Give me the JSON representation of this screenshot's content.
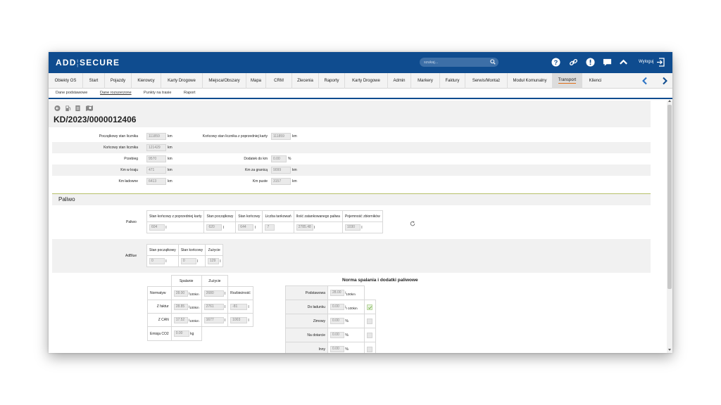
{
  "app": {
    "logo_left": "ADD",
    "logo_right": "SECURE",
    "search_placeholder": "szukaj...",
    "logout_label": "Wyloguj",
    "brand_color": "#0f4c8f"
  },
  "topbar_icons": [
    "help-icon",
    "link-icon",
    "alert-icon",
    "chat-icon",
    "chevron-up-icon"
  ],
  "nav": {
    "items": [
      {
        "label": "Obiekty OS"
      },
      {
        "label": "Start"
      },
      {
        "label": "Pojazdy"
      },
      {
        "label": "Kierowcy"
      },
      {
        "label": "Karty Drogowe"
      },
      {
        "label": "Miejsca/Obszary"
      },
      {
        "label": "Mapa"
      },
      {
        "label": "CRM"
      },
      {
        "label": "Zlecenia"
      },
      {
        "label": "Raporty"
      },
      {
        "label": "Karty Drogowe"
      },
      {
        "label": "Admin"
      },
      {
        "label": "Markery"
      },
      {
        "label": "Faktury"
      },
      {
        "label": "Serwis/Montaż"
      },
      {
        "label": "Moduł Komunalny"
      },
      {
        "label": "Transport"
      },
      {
        "label": "Klienci"
      }
    ],
    "active": "Transport"
  },
  "subnav": {
    "items": [
      "Dane podstawowe",
      "Dane rozszerzone",
      "Punkty na trasie",
      "Raport"
    ],
    "active": "Dane rozszerzone"
  },
  "document": {
    "title": "KD/2023/0000012406"
  },
  "odometer": {
    "start_label": "Początkowy stan licznika",
    "start_value": "111859",
    "start_unit": "km",
    "prev_label": "Końcowy stan licznika z poprzedniej karty",
    "prev_value": "111859",
    "prev_unit": "km",
    "end_label": "Końcowy stan licznika",
    "end_value": "121429",
    "end_unit": "km",
    "mileage_label": "Przebieg",
    "mileage_value": "9570",
    "mileage_unit": "km",
    "bonus_label": "Dodatek do km",
    "bonus_value": "0.00",
    "bonus_unit": "%",
    "domestic_label": "Km w kraju",
    "domestic_value": "471",
    "domestic_unit": "km",
    "abroad_label": "Km za granicą",
    "abroad_value": "9099",
    "abroad_unit": "km",
    "loaded_label": "Km ładowne",
    "loaded_value": "6413",
    "loaded_unit": "km",
    "empty_label": "Km puste",
    "empty_value": "3157",
    "empty_unit": "km"
  },
  "fuel_section": {
    "title": "Paliwo",
    "paliwo_label": "Paliwo",
    "paliwo_headers": [
      "Stan końcowy z poprzedniej karty",
      "Stan początkowy",
      "Stan końcowy",
      "Liczba tankowań",
      "Ilość zatankowanego paliwa",
      "Pojemność zbiorników"
    ],
    "paliwo_values": [
      "604",
      "620",
      "644",
      "7",
      "2785.48",
      "1030"
    ],
    "paliwo_units": [
      "l",
      "l",
      "l",
      "",
      "l",
      "l"
    ],
    "adblue_label": "AdBlue",
    "adblue_headers": [
      "Stan początkowy",
      "Stan końcowy",
      "Zużycie"
    ],
    "adblue_values": [
      "0",
      "0",
      "129"
    ],
    "adblue_units": [
      "l",
      "l",
      "l"
    ]
  },
  "consumption": {
    "headers": [
      "Spalanie",
      "Zużycie"
    ],
    "diff_header": "Rozbieżność",
    "rows": [
      {
        "label": "Normatyw",
        "spalanie": "28.00",
        "unit_top": "l",
        "unit_bottom": "100km",
        "zuzycie": "2680",
        "zuzycie_unit": "l",
        "diff": "",
        "diff_unit": ""
      },
      {
        "label": "Z faktur",
        "spalanie": "28.85",
        "unit_top": "l",
        "unit_bottom": "100km",
        "zuzycie": "2761",
        "zuzycie_unit": "l",
        "diff": "-81",
        "diff_unit": "l"
      },
      {
        "label": "Z CAN",
        "spalanie": "17.52",
        "unit_top": "l",
        "unit_bottom": "100km",
        "zuzycie": "1677",
        "zuzycie_unit": "l",
        "diff": "1003",
        "diff_unit": "l"
      }
    ],
    "co2_label": "Emisja CO2",
    "co2_value": "0.00",
    "co2_unit": "kg"
  },
  "norma": {
    "title": "Norma spalania i dodatki paliwowe",
    "rows": [
      {
        "label": "Podstawowa",
        "value": "28.00",
        "unit": "l",
        "unit_bottom": "100km",
        "checked": null
      },
      {
        "label": "Do ładunku",
        "value": "0.00",
        "unit": "l",
        "unit_bottom": "t·100km",
        "checked": true
      },
      {
        "label": "Zimowy",
        "value": "0.00",
        "unit": "%",
        "unit_bottom": "",
        "checked": false
      },
      {
        "label": "Na dotarcie",
        "value": "0.00",
        "unit": "%",
        "unit_bottom": "",
        "checked": false
      },
      {
        "label": "Inny",
        "value": "0.00",
        "unit": "%",
        "unit_bottom": "",
        "checked": false
      }
    ]
  }
}
